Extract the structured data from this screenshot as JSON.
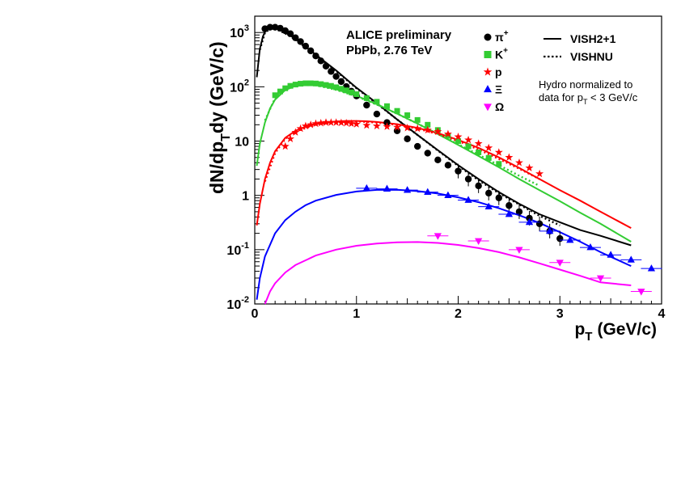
{
  "chart_data": {
    "type": "scatter",
    "xlabel": "p",
    "xlabel_sub": "T",
    "xlabel_unit": "(GeV/c)",
    "ylabel_parts": [
      "dN/dp",
      "T",
      "dy (GeV/c)"
    ],
    "xlim": [
      0,
      4
    ],
    "ylim": [
      0.01,
      2000
    ],
    "y_scale": "log",
    "x_ticks": [
      "0",
      "1",
      "2",
      "3",
      "4"
    ],
    "y_ticks": [
      {
        "base": "10",
        "exp": "-2"
      },
      {
        "base": "10",
        "exp": "-1"
      },
      {
        "base": "1",
        "exp": ""
      },
      {
        "base": "10",
        "exp": ""
      },
      {
        "base": "10",
        "exp": "2"
      },
      {
        "base": "10",
        "exp": "3"
      }
    ],
    "annotation": [
      "ALICE preliminary",
      "PbPb, 2.76 TeV"
    ],
    "note": [
      "Hydro normalized to",
      "data for p",
      "T",
      " < 3 GeV/c"
    ],
    "legend_placement": "top-right",
    "model_legend": [
      {
        "name": "VISH2+1",
        "style": "solid"
      },
      {
        "name": "VISHNU",
        "style": "dotted"
      }
    ],
    "series": [
      {
        "name": "π",
        "sup": "+",
        "color": "#000000",
        "marker": "circle",
        "x": [
          0.1,
          0.15,
          0.2,
          0.25,
          0.3,
          0.35,
          0.4,
          0.45,
          0.5,
          0.55,
          0.6,
          0.65,
          0.7,
          0.75,
          0.8,
          0.85,
          0.9,
          0.95,
          1.0,
          1.1,
          1.2,
          1.3,
          1.4,
          1.5,
          1.6,
          1.7,
          1.8,
          1.9,
          2.0,
          2.1,
          2.2,
          2.3,
          2.4,
          2.5,
          2.6,
          2.7,
          2.8,
          2.9,
          3.0
        ],
        "y": [
          1170,
          1250,
          1250,
          1200,
          1080,
          950,
          800,
          680,
          560,
          460,
          370,
          300,
          240,
          192,
          155,
          125,
          101,
          83,
          68,
          46,
          31.5,
          22,
          15.5,
          11,
          8,
          6,
          4.5,
          3.6,
          2.8,
          2.0,
          1.5,
          1.1,
          0.9,
          0.65,
          0.5,
          0.38,
          0.3,
          0.22,
          0.16
        ],
        "curve_solid": {
          "x": [
            0.02,
            0.05,
            0.08,
            0.1,
            0.13,
            0.16,
            0.2,
            0.25,
            0.3,
            0.4,
            0.5,
            0.6,
            0.8,
            1.0,
            1.2,
            1.4,
            1.6,
            1.8,
            2.0,
            2.2,
            2.4,
            2.6,
            2.8,
            3.0,
            3.2,
            3.4,
            3.7
          ],
          "y": [
            150,
            500,
            850,
            1020,
            1150,
            1220,
            1200,
            1120,
            1000,
            760,
            550,
            390,
            200,
            96,
            50,
            25,
            13,
            6.8,
            3.6,
            2.0,
            1.15,
            0.7,
            0.45,
            0.32,
            0.23,
            0.18,
            0.12
          ]
        },
        "curve_dotted": {
          "x": [
            0.05,
            0.1,
            0.15,
            0.2,
            0.3,
            0.4,
            0.6,
            0.8,
            1.0,
            1.2,
            1.4,
            1.6,
            1.8,
            2.0,
            2.2,
            2.4,
            2.6,
            2.8,
            3.0
          ],
          "y": [
            480,
            990,
            1170,
            1180,
            960,
            740,
            380,
            195,
            94,
            49,
            25,
            13,
            6.7,
            3.5,
            1.9,
            1.1,
            0.68,
            0.42,
            0.28
          ]
        }
      },
      {
        "name": "K",
        "sup": "+",
        "color": "#33cc33",
        "marker": "square",
        "x": [
          0.2,
          0.25,
          0.3,
          0.35,
          0.4,
          0.45,
          0.5,
          0.55,
          0.6,
          0.65,
          0.7,
          0.75,
          0.8,
          0.85,
          0.9,
          0.95,
          1.0,
          1.1,
          1.2,
          1.3,
          1.4,
          1.5,
          1.6,
          1.7,
          1.8,
          1.9,
          2.0,
          2.1,
          2.2,
          2.3,
          2.4
        ],
        "y": [
          70,
          82,
          94,
          104,
          110,
          114,
          116,
          116,
          115,
          112,
          108,
          104,
          98,
          92,
          86,
          79,
          73,
          62,
          53,
          44,
          36,
          30,
          24.5,
          20,
          16,
          12.5,
          10,
          8,
          6.2,
          4.9,
          3.8
        ],
        "curve_solid": {
          "x": [
            0.02,
            0.05,
            0.1,
            0.15,
            0.2,
            0.3,
            0.4,
            0.5,
            0.6,
            0.7,
            0.8,
            1.0,
            1.2,
            1.4,
            1.6,
            1.8,
            2.0,
            2.2,
            2.4,
            2.6,
            2.8,
            3.0,
            3.2,
            3.4,
            3.7
          ],
          "y": [
            3.5,
            9,
            22,
            40,
            58,
            87,
            104,
            110,
            108,
            100,
            90,
            68,
            48,
            32,
            21,
            13.5,
            8.5,
            5.3,
            3.3,
            2.0,
            1.25,
            0.78,
            0.48,
            0.3,
            0.14
          ]
        },
        "curve_dotted": {
          "x": [
            0.1,
            0.2,
            0.3,
            0.4,
            0.5,
            0.6,
            0.8,
            1.0,
            1.2,
            1.4,
            1.6,
            1.8,
            2.0,
            2.2,
            2.4,
            2.6,
            2.8
          ],
          "y": [
            24,
            62,
            90,
            105,
            110,
            107,
            88,
            67,
            47,
            32,
            21,
            13.5,
            8.8,
            5.6,
            3.6,
            2.3,
            1.5
          ]
        }
      },
      {
        "name": "p",
        "sup": "",
        "color": "#ff0000",
        "marker": "star",
        "x": [
          0.3,
          0.35,
          0.4,
          0.45,
          0.5,
          0.55,
          0.6,
          0.65,
          0.7,
          0.75,
          0.8,
          0.85,
          0.9,
          0.95,
          1.0,
          1.1,
          1.2,
          1.3,
          1.4,
          1.5,
          1.6,
          1.7,
          1.8,
          1.9,
          2.0,
          2.1,
          2.2,
          2.3,
          2.4,
          2.5,
          2.6,
          2.7,
          2.8
        ],
        "y": [
          8,
          11,
          14.5,
          17,
          19,
          20,
          21,
          21.5,
          22,
          22,
          22,
          21.8,
          21.5,
          21,
          20.5,
          19.5,
          19,
          18.5,
          18,
          17.5,
          17,
          16,
          15,
          13.5,
          12,
          10.5,
          9,
          7.5,
          6.2,
          5,
          4,
          3.2,
          2.5
        ],
        "curve_solid": {
          "x": [
            0.02,
            0.05,
            0.1,
            0.15,
            0.2,
            0.3,
            0.4,
            0.5,
            0.6,
            0.7,
            0.8,
            0.9,
            1.0,
            1.1,
            1.2,
            1.4,
            1.6,
            1.8,
            2.0,
            2.2,
            2.4,
            2.6,
            2.8,
            3.0,
            3.2,
            3.4,
            3.7
          ],
          "y": [
            0.28,
            0.7,
            2.0,
            4.0,
            6.5,
            11.5,
            15.5,
            18.5,
            20.5,
            22,
            23,
            23.5,
            23.5,
            23.2,
            22.5,
            20.5,
            17.5,
            14,
            10.5,
            7.5,
            5,
            3.2,
            2.0,
            1.25,
            0.8,
            0.5,
            0.25
          ]
        },
        "curve_dotted": {
          "x": [
            0.1,
            0.2,
            0.3,
            0.4,
            0.6,
            0.8,
            1.0,
            1.2,
            1.4,
            1.6,
            1.8,
            2.0,
            2.2,
            2.4,
            2.6,
            2.8
          ],
          "y": [
            1.8,
            6,
            11,
            15,
            20,
            22.5,
            23,
            22,
            20,
            17,
            13.5,
            10,
            7,
            4.7,
            3.1,
            2.0
          ]
        }
      },
      {
        "name": "Ξ",
        "sup": "",
        "color": "#0000ff",
        "marker": "triangle-up",
        "x": [
          1.1,
          1.3,
          1.5,
          1.7,
          1.9,
          2.1,
          2.3,
          2.5,
          2.7,
          2.9,
          3.1,
          3.3,
          3.5,
          3.7,
          3.9
        ],
        "y": [
          1.35,
          1.32,
          1.25,
          1.15,
          1.0,
          0.82,
          0.62,
          0.45,
          0.32,
          0.22,
          0.15,
          0.11,
          0.08,
          0.065,
          0.045
        ],
        "curve_solid": {
          "x": [
            0.02,
            0.05,
            0.1,
            0.2,
            0.3,
            0.4,
            0.5,
            0.6,
            0.8,
            1.0,
            1.2,
            1.4,
            1.6,
            1.8,
            2.0,
            2.2,
            2.4,
            2.6,
            2.8,
            3.0,
            3.2,
            3.4,
            3.7
          ],
          "y": [
            0.012,
            0.03,
            0.075,
            0.2,
            0.35,
            0.5,
            0.66,
            0.8,
            1.02,
            1.18,
            1.26,
            1.27,
            1.2,
            1.08,
            0.92,
            0.75,
            0.58,
            0.43,
            0.31,
            0.21,
            0.14,
            0.09,
            0.05
          ]
        }
      },
      {
        "name": "Ω",
        "sup": "",
        "color": "#ff00ff",
        "marker": "triangle-down",
        "x": [
          1.8,
          2.2,
          2.6,
          3.0,
          3.4,
          3.8
        ],
        "y": [
          0.18,
          0.145,
          0.1,
          0.058,
          0.03,
          0.017
        ],
        "curve_solid": {
          "x": [
            0.1,
            0.15,
            0.2,
            0.3,
            0.4,
            0.6,
            0.8,
            1.0,
            1.2,
            1.4,
            1.6,
            1.8,
            2.0,
            2.2,
            2.4,
            2.6,
            2.8,
            3.0,
            3.2,
            3.4,
            3.7
          ],
          "y": [
            0.01,
            0.017,
            0.024,
            0.038,
            0.052,
            0.078,
            0.1,
            0.118,
            0.13,
            0.137,
            0.138,
            0.133,
            0.122,
            0.107,
            0.09,
            0.072,
            0.056,
            0.043,
            0.033,
            0.025,
            0.022
          ]
        }
      }
    ]
  }
}
